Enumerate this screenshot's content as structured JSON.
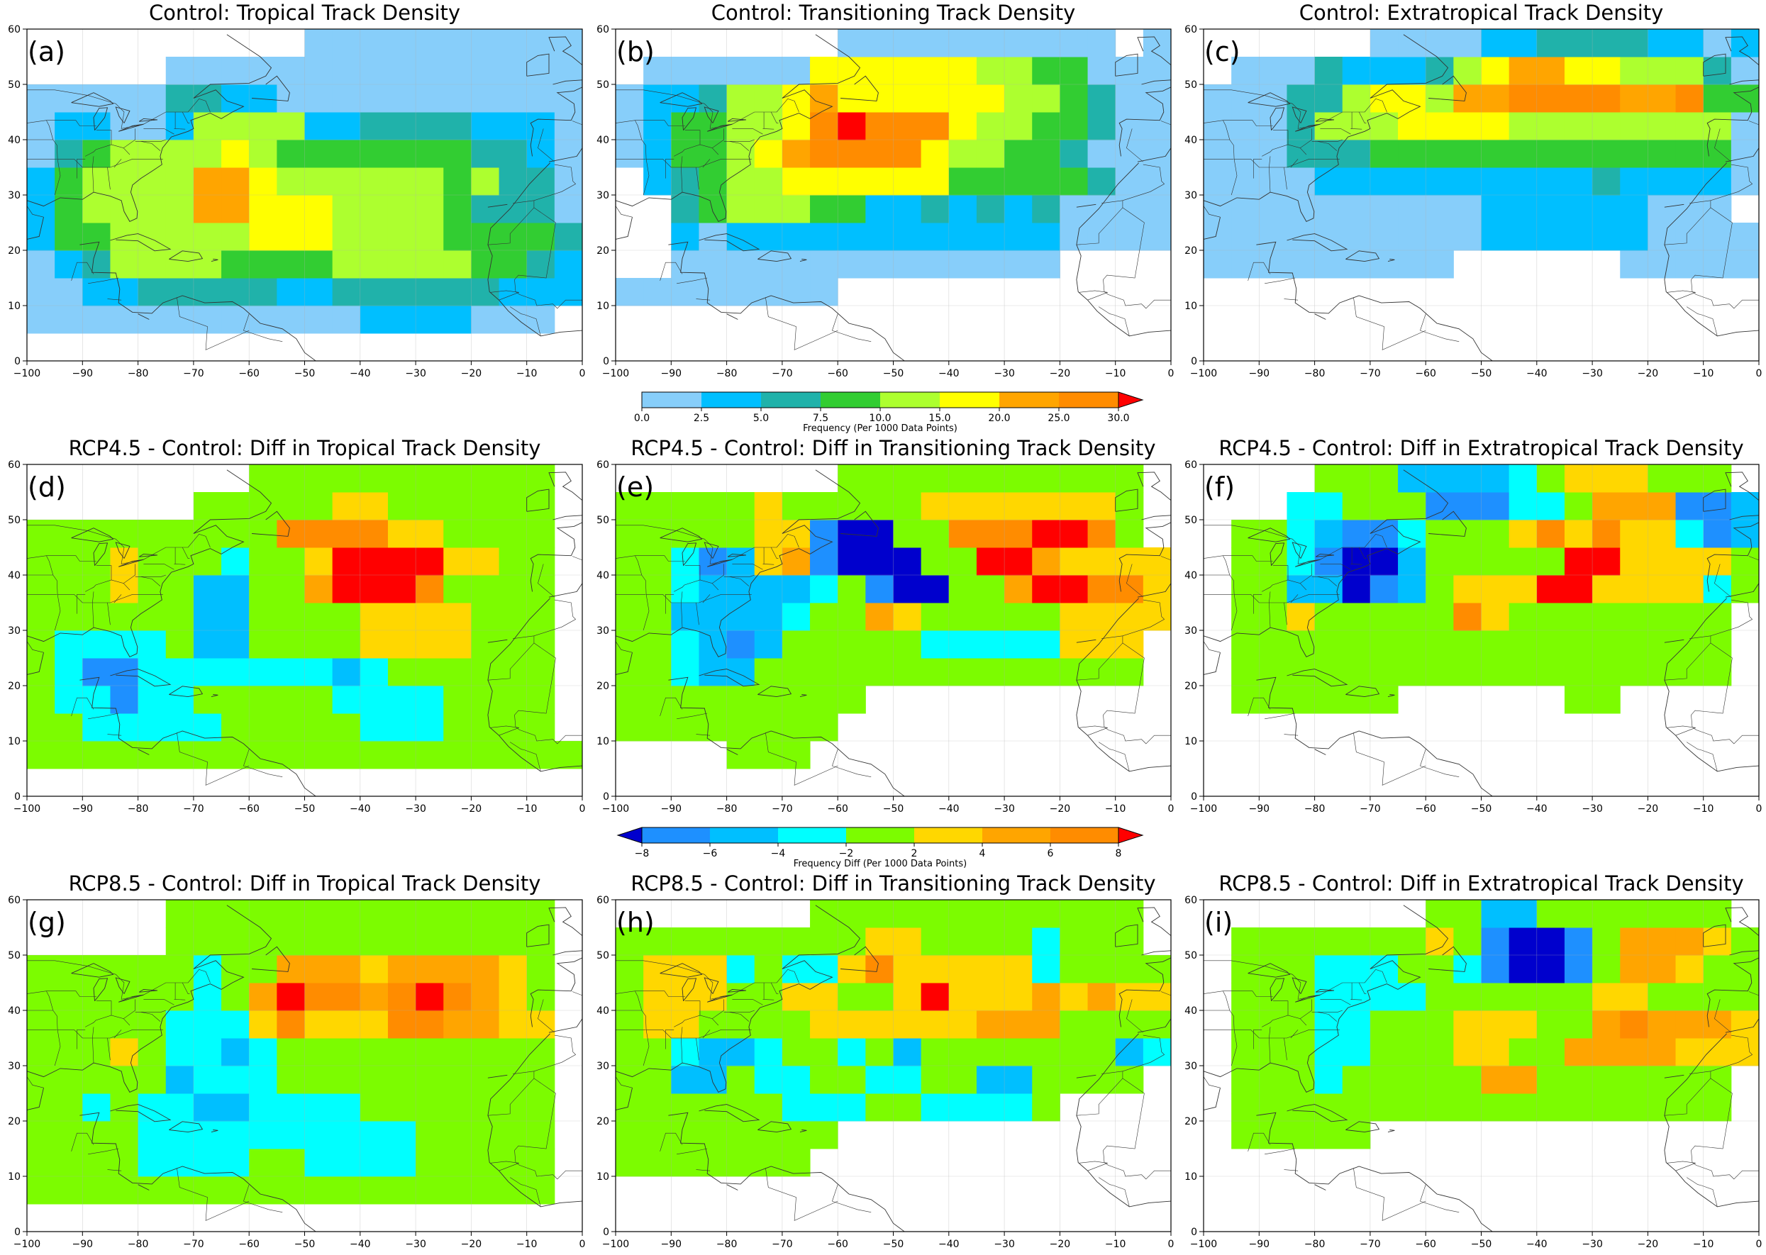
{
  "chart_data": [
    {
      "type": "heatmap",
      "id": "a",
      "panel_label": "(a)",
      "title": "Control: Tropical Track Density",
      "xlim": [
        -100,
        0
      ],
      "ylim": [
        0,
        60
      ],
      "xticks": [
        -100,
        -90,
        -80,
        -70,
        -60,
        -50,
        -40,
        -30,
        -20,
        -10,
        0
      ],
      "yticks": [
        0,
        10,
        20,
        30,
        40,
        50,
        60
      ],
      "cell_size_deg": 5,
      "cells": [
        [
          -100,
          5,
          20,
          0
        ],
        [
          -100,
          10,
          20,
          0
        ],
        [
          -100,
          10,
          0,
          0,
          0,
          2,
          2,
          0,
          0,
          1,
          1,
          1,
          1,
          1,
          2,
          2,
          2,
          2,
          2,
          2,
          0,
          0,
          0,
          0,
          0,
          1,
          1,
          1,
          0,
          0,
          0,
          0,
          0,
          0,
          0,
          0,
          0
        ],
        [
          -100,
          15,
          0,
          0,
          2,
          3,
          3,
          3,
          3,
          3,
          3,
          3,
          3,
          3,
          3,
          3,
          3,
          3,
          3,
          3,
          2,
          1,
          0,
          0,
          0,
          0,
          0,
          0,
          0,
          0,
          0,
          0,
          0,
          0,
          0,
          0,
          0
        ],
        [
          -100,
          20,
          1,
          2,
          4,
          4,
          4,
          4,
          4,
          4,
          4,
          4,
          4,
          4,
          4,
          4,
          2,
          2,
          3,
          3,
          3,
          0,
          0,
          0,
          0,
          0,
          0,
          0,
          0,
          0,
          0,
          0,
          0,
          0,
          0,
          0,
          0
        ],
        [
          -100,
          25,
          1,
          3,
          4,
          4,
          4,
          4,
          4,
          4,
          5,
          5,
          5,
          5,
          5,
          4,
          4,
          4,
          4,
          3,
          3,
          2,
          2,
          2,
          2,
          1,
          1,
          0,
          0,
          0,
          0,
          0,
          0,
          0,
          0,
          0,
          0
        ],
        [
          -100,
          30,
          1,
          3,
          4,
          4,
          4,
          4,
          4,
          4,
          5,
          5,
          5,
          5,
          5,
          4,
          4,
          4,
          4,
          3,
          3,
          2,
          2,
          2,
          2,
          1,
          1,
          0,
          0,
          0,
          0,
          0,
          0,
          0,
          0,
          0,
          0
        ],
        [
          -100,
          35,
          1,
          3,
          3,
          3,
          4,
          4,
          6,
          6,
          5,
          5,
          4,
          4,
          4,
          4,
          4,
          4,
          3,
          3,
          3,
          3,
          3,
          3,
          2,
          2,
          1,
          0,
          0,
          0,
          0,
          0,
          0,
          0,
          0,
          0,
          0
        ],
        [
          -100,
          40,
          1,
          1,
          1,
          1,
          1,
          1,
          4,
          4,
          4,
          4,
          3,
          3,
          3,
          3,
          3,
          3,
          3,
          3,
          3,
          3,
          3,
          3,
          2,
          2,
          1,
          0,
          0,
          0,
          0,
          0,
          0,
          0,
          0,
          0,
          0
        ],
        [
          -100,
          45,
          0,
          0,
          0,
          0,
          1,
          2,
          2,
          2,
          2,
          2,
          1,
          1,
          2,
          2,
          2,
          2,
          2,
          2,
          2,
          2,
          1,
          1,
          0,
          0,
          0,
          0,
          0,
          0,
          0,
          0,
          0,
          0,
          0,
          0,
          0
        ]
      ]
    },
    {
      "type": "heatmap",
      "id": "b",
      "panel_label": "(b)",
      "title": "Control: Transitioning Track Density",
      "xlim": [
        -100,
        0
      ],
      "ylim": [
        0,
        60
      ],
      "xticks": [
        -100,
        -90,
        -80,
        -70,
        -60,
        -50,
        -40,
        -30,
        -20,
        -10,
        0
      ],
      "yticks": [
        0,
        10,
        20,
        30,
        40,
        50,
        60
      ]
    },
    {
      "type": "heatmap",
      "id": "c",
      "panel_label": "(c)",
      "title": "Control: Extratropical Track Density",
      "xlim": [
        -100,
        0
      ],
      "ylim": [
        0,
        60
      ],
      "xticks": [
        -100,
        -90,
        -80,
        -70,
        -60,
        -50,
        -40,
        -30,
        -20,
        -10,
        0
      ],
      "yticks": [
        0,
        10,
        20,
        30,
        40,
        50,
        60
      ]
    },
    {
      "type": "heatmap",
      "id": "d",
      "panel_label": "(d)",
      "title": "RCP4.5 - Control: Diff in Tropical Track Density",
      "xlim": [
        -100,
        0
      ],
      "ylim": [
        0,
        60
      ],
      "xticks": [
        -100,
        -90,
        -80,
        -70,
        -60,
        -50,
        -40,
        -30,
        -20,
        -10,
        0
      ],
      "yticks": [
        0,
        10,
        20,
        30,
        40,
        50,
        60
      ]
    },
    {
      "type": "heatmap",
      "id": "e",
      "panel_label": "(e)",
      "title": "RCP4.5 - Control: Diff in Transitioning Track Density",
      "xlim": [
        -100,
        0
      ],
      "ylim": [
        0,
        60
      ],
      "xticks": [
        -100,
        -90,
        -80,
        -70,
        -60,
        -50,
        -40,
        -30,
        -20,
        -10,
        0
      ],
      "yticks": [
        0,
        10,
        20,
        30,
        40,
        50,
        60
      ]
    },
    {
      "type": "heatmap",
      "id": "f",
      "panel_label": "(f)",
      "title": "RCP4.5 - Control: Diff in Extratropical Track Density",
      "xlim": [
        -100,
        0
      ],
      "ylim": [
        0,
        60
      ],
      "xticks": [
        -100,
        -90,
        -80,
        -70,
        -60,
        -50,
        -40,
        -30,
        -20,
        -10,
        0
      ],
      "yticks": [
        0,
        10,
        20,
        30,
        40,
        50,
        60
      ]
    },
    {
      "type": "heatmap",
      "id": "g",
      "panel_label": "(g)",
      "title": "RCP8.5 - Control: Diff in Tropical Track Density",
      "xlim": [
        -100,
        0
      ],
      "ylim": [
        0,
        60
      ],
      "xticks": [
        -100,
        -90,
        -80,
        -70,
        -60,
        -50,
        -40,
        -30,
        -20,
        -10,
        0
      ],
      "yticks": [
        0,
        10,
        20,
        30,
        40,
        50,
        60
      ]
    },
    {
      "type": "heatmap",
      "id": "h",
      "panel_label": "(h)",
      "title": "RCP8.5 - Control: Diff in Transitioning Track Density",
      "xlim": [
        -100,
        0
      ],
      "ylim": [
        0,
        60
      ],
      "xticks": [
        -100,
        -90,
        -80,
        -70,
        -60,
        -50,
        -40,
        -30,
        -20,
        -10,
        0
      ],
      "yticks": [
        0,
        10,
        20,
        30,
        40,
        50,
        60
      ]
    },
    {
      "type": "heatmap",
      "id": "i",
      "panel_label": "(i)",
      "title": "RCP8.5 - Control: Diff in Extratropical Track Density",
      "xlim": [
        -100,
        0
      ],
      "ylim": [
        0,
        60
      ],
      "xticks": [
        -100,
        -90,
        -80,
        -70,
        -60,
        -50,
        -40,
        -30,
        -20,
        -10,
        0
      ],
      "yticks": [
        0,
        10,
        20,
        30,
        40,
        50,
        60
      ]
    }
  ],
  "colorbars": {
    "control": {
      "label": "Frequency (Per 1000 Data Points)",
      "ticks": [
        "0.0",
        "2.5",
        "5.0",
        "7.5",
        "10.0",
        "15.0",
        "20.0",
        "25.0",
        "30.0"
      ],
      "bounds": [
        0,
        2.5,
        5,
        7.5,
        10,
        15,
        20,
        25,
        30
      ],
      "colors": [
        "#87cefa",
        "#00bfff",
        "#20b2aa",
        "#32cd32",
        "#adff2f",
        "#ffff00",
        "#ffa500",
        "#ff8c00"
      ],
      "extend_max_color": "#ff0000"
    },
    "diff": {
      "label": "Frequency Diff (Per 1000 Data Points)",
      "ticks": [
        "−8",
        "−6",
        "−4",
        "−2",
        "2",
        "4",
        "6",
        "8"
      ],
      "bounds": [
        -8,
        -6,
        -4,
        -2,
        2,
        4,
        6,
        8
      ],
      "colors": [
        "#1e90ff",
        "#00bfff",
        "#00ffff",
        "#7cfc00",
        "#ffd700",
        "#ffa500",
        "#ff8c00"
      ],
      "extend_min_color": "#0000cd",
      "extend_max_color": "#ff0000"
    }
  },
  "palettes": {
    "control": [
      "#ffffff",
      "#87cefa",
      "#00bfff",
      "#20b2aa",
      "#32cd32",
      "#adff2f",
      "#ffff00",
      "#ffa500",
      "#ff8c00",
      "#ff0000"
    ],
    "diff": [
      "#ffffff",
      "#7cfc00",
      "#00ffff",
      "#00bfff",
      "#1e90ff",
      "#0000cd",
      "#ffd700",
      "#ffa500",
      "#ff8c00",
      "#ff0000"
    ]
  }
}
